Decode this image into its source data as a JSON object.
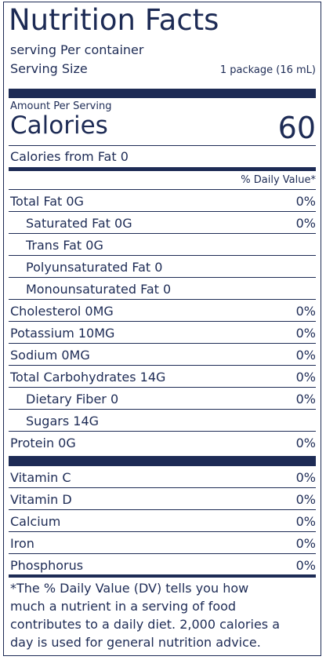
{
  "header": {
    "title": "Nutrition Facts",
    "servings": "serving Per container",
    "serving_size_label": "Serving Size",
    "serving_size_value": "1 package (16 mL)"
  },
  "calories": {
    "amount_label": "Amount Per Serving",
    "label": "Calories",
    "value": "60",
    "from_fat": "Calories from Fat 0"
  },
  "daily_value_header": "% Daily Value*",
  "nutrients": [
    {
      "name": "Total Fat 0G",
      "dv": "0%"
    },
    {
      "name": "Saturated Fat 0G",
      "dv": "0%",
      "indent": true
    },
    {
      "name": "Trans Fat 0G",
      "indent": true
    },
    {
      "name": "Polyunsaturated Fat 0",
      "indent": true
    },
    {
      "name": "Monounsaturated Fat 0",
      "indent": true
    },
    {
      "name": "Cholesterol 0MG",
      "dv": "0%"
    },
    {
      "name": "Potassium 10MG",
      "dv": "0%"
    },
    {
      "name": "Sodium 0MG",
      "dv": "0%"
    },
    {
      "name": "Total Carbohydrates 14G",
      "dv": "0%"
    },
    {
      "name": "Dietary Fiber 0",
      "dv": "0%",
      "indent": true
    },
    {
      "name": "Sugars 14G",
      "indent": true
    },
    {
      "name": "Protein 0G",
      "dv": "0%"
    }
  ],
  "vitamins": [
    {
      "name": "Vitamin C",
      "dv": "0%"
    },
    {
      "name": "Vitamin D",
      "dv": "0%"
    },
    {
      "name": "Calcium",
      "dv": "0%"
    },
    {
      "name": "Iron",
      "dv": "0%"
    },
    {
      "name": "Phosphorus",
      "dv": "0%"
    }
  ],
  "footnote": [
    "*The % Daily Value (DV) tells you how",
    "much a nutrient in a serving of food",
    "contributes to a daily diet. 2,000 calories a",
    "day is used for general nutrition advice."
  ]
}
